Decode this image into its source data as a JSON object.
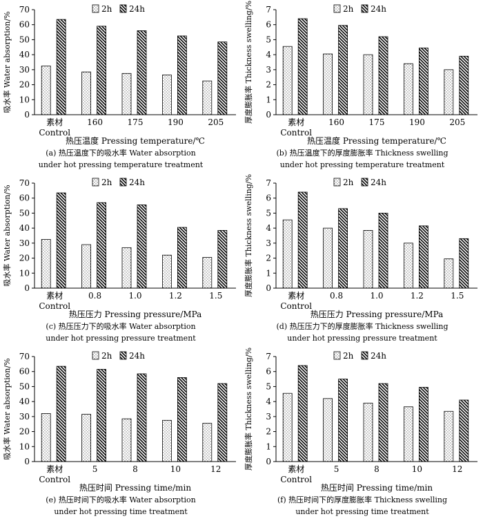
{
  "legend": {
    "series_2h": "2h",
    "series_24h": "24h"
  },
  "chart_data": [
    {
      "type": "bar",
      "categories": [
        "素材",
        "160",
        "175",
        "190",
        "205"
      ],
      "category_sublabel": "Control",
      "series": [
        {
          "name": "2h",
          "values": [
            32.5,
            28.5,
            27.5,
            26.5,
            22.5
          ]
        },
        {
          "name": "24h",
          "values": [
            63.5,
            59.0,
            56.0,
            52.5,
            48.5
          ]
        }
      ],
      "title": "",
      "xlabel": "热压温度 Pressing temperature/℃",
      "ylabel": "吸水率 Water absorption/%",
      "ylim": [
        0,
        70
      ],
      "yticks": [
        0,
        10,
        20,
        30,
        40,
        50,
        60,
        70
      ],
      "legend_position": "top",
      "caption_line1": "(a) 热压温度下的吸水率  Water absorption",
      "caption_line2": "under hot pressing temperature treatment"
    },
    {
      "type": "bar",
      "categories": [
        "素材",
        "160",
        "175",
        "190",
        "205"
      ],
      "category_sublabel": "Control",
      "series": [
        {
          "name": "2h",
          "values": [
            4.55,
            4.05,
            4.0,
            3.4,
            3.0
          ]
        },
        {
          "name": "24h",
          "values": [
            6.4,
            5.95,
            5.2,
            4.45,
            3.9
          ]
        }
      ],
      "title": "",
      "xlabel": "热压温度 Pressing temperature/℃",
      "ylabel": "厚度膨胀率 Thickness swelling/%",
      "ylim": [
        0,
        7
      ],
      "yticks": [
        0,
        1,
        2,
        3,
        4,
        5,
        6,
        7
      ],
      "legend_position": "top",
      "caption_line1": "(b) 热压温度下的厚度膨胀率 Thickness swelling",
      "caption_line2": "under hot pressing temperature treatment"
    },
    {
      "type": "bar",
      "categories": [
        "素材",
        "0.8",
        "1.0",
        "1.2",
        "1.5"
      ],
      "category_sublabel": "Control",
      "series": [
        {
          "name": "2h",
          "values": [
            32.5,
            29.0,
            27.0,
            22.0,
            20.5
          ]
        },
        {
          "name": "24h",
          "values": [
            63.5,
            57.0,
            55.5,
            40.5,
            38.5
          ]
        }
      ],
      "title": "",
      "xlabel": "热压压力 Pressing pressure/MPa",
      "ylabel": "吸水率 Water absorption/%",
      "ylim": [
        0,
        70
      ],
      "yticks": [
        0,
        10,
        20,
        30,
        40,
        50,
        60,
        70
      ],
      "legend_position": "top",
      "caption_line1": "(c) 热压压力下的吸水率  Water absorption",
      "caption_line2": "under hot pressing pressure treatment"
    },
    {
      "type": "bar",
      "categories": [
        "素材",
        "0.8",
        "1.0",
        "1.2",
        "1.5"
      ],
      "category_sublabel": "Control",
      "series": [
        {
          "name": "2h",
          "values": [
            4.55,
            4.0,
            3.85,
            3.0,
            1.95
          ]
        },
        {
          "name": "24h",
          "values": [
            6.4,
            5.3,
            5.0,
            4.15,
            3.3
          ]
        }
      ],
      "title": "",
      "xlabel": "热压压力 Pressing pressure/MPa",
      "ylabel": "厚度膨胀率 Thickness swelling/%",
      "ylim": [
        0,
        7
      ],
      "yticks": [
        0,
        1,
        2,
        3,
        4,
        5,
        6,
        7
      ],
      "legend_position": "top",
      "caption_line1": "(d) 热压压力下的厚度膨胀率 Thickness swelling",
      "caption_line2": "under hot pressing pressure treatment"
    },
    {
      "type": "bar",
      "categories": [
        "素材",
        "5",
        "8",
        "10",
        "12"
      ],
      "category_sublabel": "Control",
      "series": [
        {
          "name": "2h",
          "values": [
            32.0,
            31.5,
            28.5,
            27.5,
            25.5
          ]
        },
        {
          "name": "24h",
          "values": [
            63.5,
            61.5,
            58.5,
            56.0,
            52.0
          ]
        }
      ],
      "title": "",
      "xlabel": "热压时间 Pressing time/min",
      "ylabel": "吸水率 Water absorption/%",
      "ylim": [
        0,
        70
      ],
      "yticks": [
        0,
        10,
        20,
        30,
        40,
        50,
        60,
        70
      ],
      "legend_position": "top",
      "caption_line1": "(e) 热压时间下的吸水率  Water absorption",
      "caption_line2": "under hot pressing time treatment"
    },
    {
      "type": "bar",
      "categories": [
        "素材",
        "5",
        "8",
        "10",
        "12"
      ],
      "category_sublabel": "Control",
      "series": [
        {
          "name": "2h",
          "values": [
            4.55,
            4.2,
            3.9,
            3.65,
            3.35
          ]
        },
        {
          "name": "24h",
          "values": [
            6.4,
            5.5,
            5.2,
            4.95,
            4.1
          ]
        }
      ],
      "title": "",
      "xlabel": "热压时间 Pressing time/min",
      "ylabel": "厚度膨胀率 Thickness swelling/%",
      "ylim": [
        0,
        7
      ],
      "yticks": [
        0,
        1,
        2,
        3,
        4,
        5,
        6,
        7
      ],
      "legend_position": "top",
      "caption_line1": "(f) 热压时间下的厚度膨胀率 Thickness swelling",
      "caption_line2": "under hot pressing time treatment"
    }
  ]
}
